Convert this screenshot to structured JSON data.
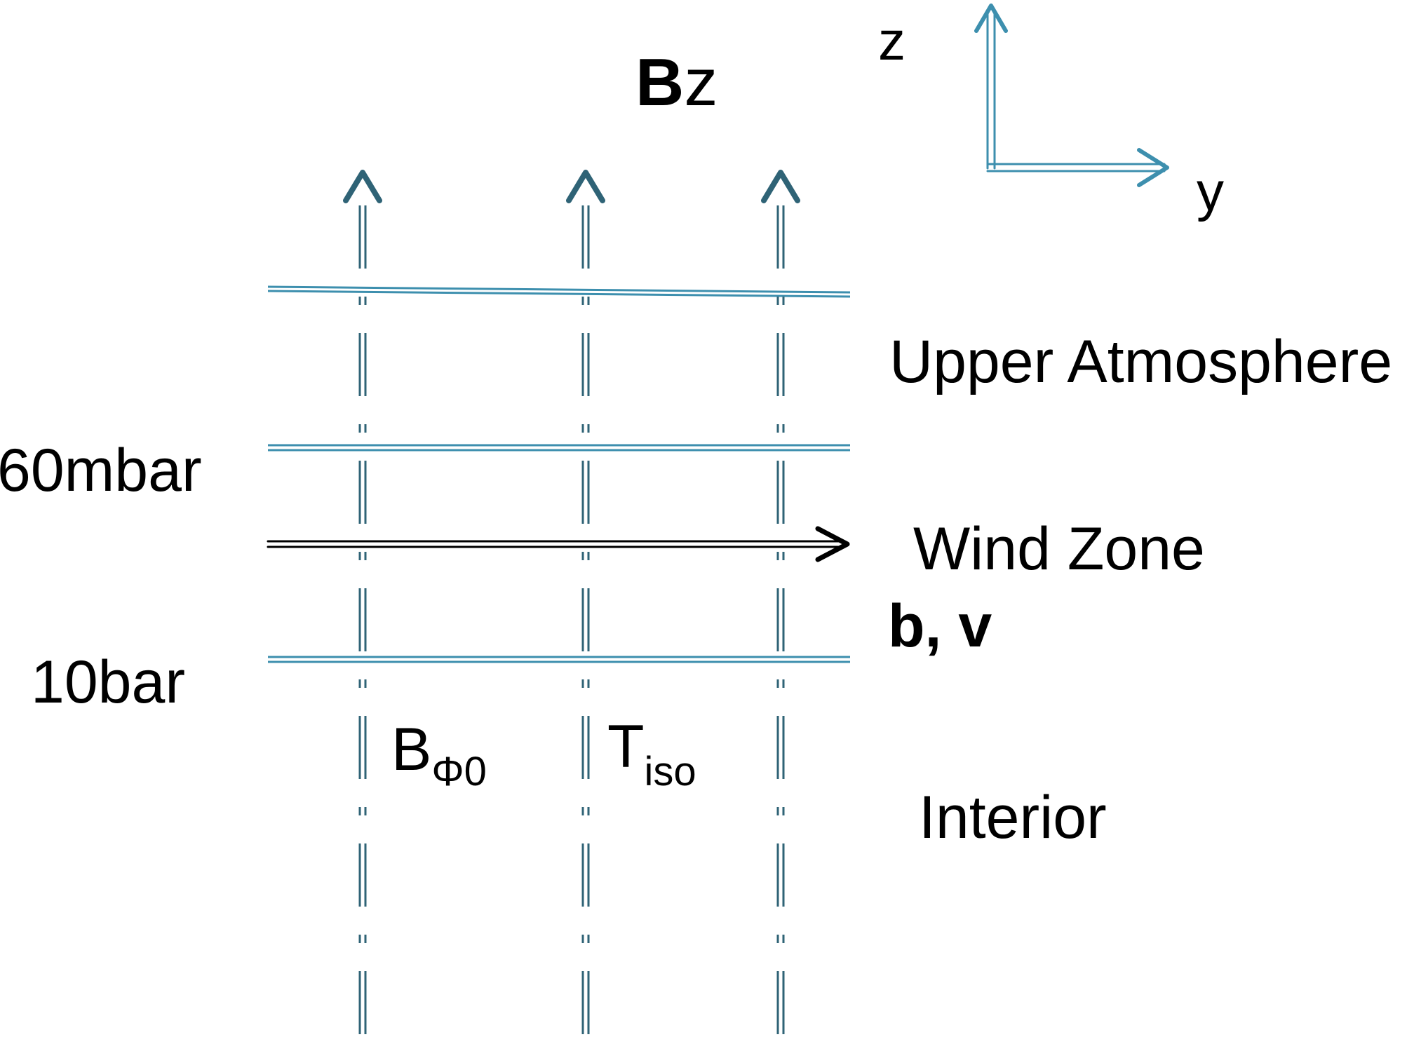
{
  "colors": {
    "field_line": "#2f6376",
    "layer_line": "#3d8fae",
    "axis": "#3d8fae",
    "wind": "#000000",
    "text": "#000000"
  },
  "labels": {
    "field_bold": "B",
    "field_suffix": "z",
    "axis_z": "z",
    "axis_y": "y",
    "upper_atmosphere": "Upper Atmosphere",
    "pressure_top": "60mbar",
    "wind_zone": "Wind Zone",
    "wind_vars": "b, v",
    "pressure_bottom": "10bar",
    "bphi_base": "B",
    "bphi_sub": "Φ0",
    "tiso_base": "T",
    "tiso_sub": "iso",
    "interior": "Interior"
  },
  "icons": {
    "field_arrow": "arrow-up-icon",
    "wind_arrow": "arrow-right-icon",
    "axis_arrows": "axes-icon"
  }
}
